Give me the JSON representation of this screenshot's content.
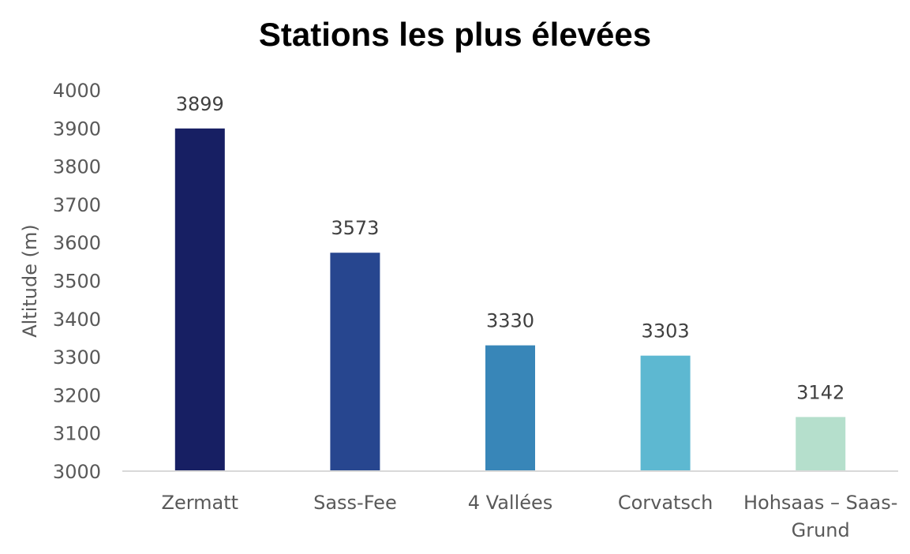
{
  "chart_data": {
    "type": "bar",
    "title": "Stations les plus élevées",
    "xlabel": "",
    "ylabel": "Altitude (m)",
    "categories": [
      "Zermatt",
      "Sass-Fee",
      "4 Vallées",
      "Corvatsch",
      "Hohsaas – Saas-Grund"
    ],
    "category_label_lines": [
      [
        "Zermatt"
      ],
      [
        "Sass-Fee"
      ],
      [
        "4 Vallées"
      ],
      [
        "Corvatsch"
      ],
      [
        "Hohsaas – Saas-",
        "Grund"
      ]
    ],
    "values": [
      3899,
      3573,
      3330,
      3303,
      3142
    ],
    "data_labels": [
      "3899",
      "3573",
      "3330",
      "3303",
      "3142"
    ],
    "colors": [
      "#171f63",
      "#27468f",
      "#3886b8",
      "#5db8d1",
      "#b5dfcc"
    ],
    "ylim": [
      3000,
      4000
    ],
    "yticks": [
      3000,
      3100,
      3200,
      3300,
      3400,
      3500,
      3600,
      3700,
      3800,
      3900,
      4000
    ],
    "grid": false,
    "legend": "none"
  }
}
